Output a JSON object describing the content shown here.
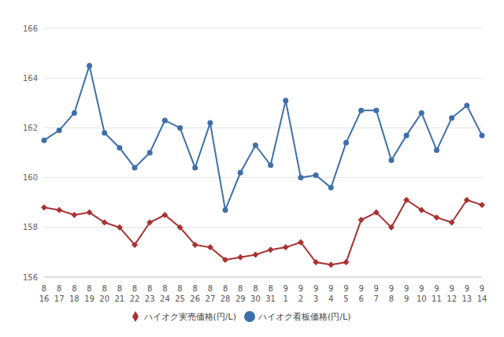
{
  "chart_data": {
    "type": "line",
    "categories": [
      "8\n16",
      "8\n17",
      "8\n18",
      "8\n19",
      "8\n20",
      "8\n21",
      "8\n22",
      "8\n23",
      "8\n24",
      "8\n25",
      "8\n26",
      "8\n27",
      "8\n28",
      "8\n29",
      "8\n30",
      "8\n31",
      "9\n1",
      "9\n2",
      "9\n3",
      "9\n4",
      "9\n5",
      "9\n6",
      "9\n7",
      "9\n8",
      "9\n9",
      "9\n10",
      "9\n11",
      "9\n12",
      "9\n13",
      "9\n14"
    ],
    "series": [
      {
        "name": "ハイオク看板価格(円/L)",
        "color": "#3f6fa8",
        "marker": "circle",
        "values": [
          161.5,
          161.9,
          162.6,
          164.5,
          161.8,
          161.2,
          160.4,
          161.0,
          162.3,
          162.0,
          160.4,
          162.2,
          158.7,
          160.2,
          161.3,
          160.5,
          163.1,
          160.0,
          160.1,
          159.6,
          161.4,
          162.7,
          162.7,
          160.7,
          161.7,
          162.6,
          161.1,
          162.4,
          162.9,
          161.7
        ]
      },
      {
        "name": "ハイオク実売価格(円/L)",
        "color": "#a83232",
        "marker": "diamond",
        "values": [
          158.8,
          158.7,
          158.5,
          158.6,
          158.2,
          158.0,
          157.3,
          158.2,
          158.5,
          158.0,
          157.3,
          157.2,
          156.7,
          156.8,
          156.9,
          157.1,
          157.2,
          157.4,
          156.6,
          156.5,
          156.6,
          158.3,
          158.6,
          158.0,
          159.1,
          158.7,
          158.4,
          158.2,
          159.1,
          158.9
        ]
      }
    ],
    "ylim": [
      156,
      166
    ],
    "yticks": [
      156,
      158,
      160,
      162,
      164,
      166
    ],
    "grid": true,
    "legend": "bottom"
  }
}
